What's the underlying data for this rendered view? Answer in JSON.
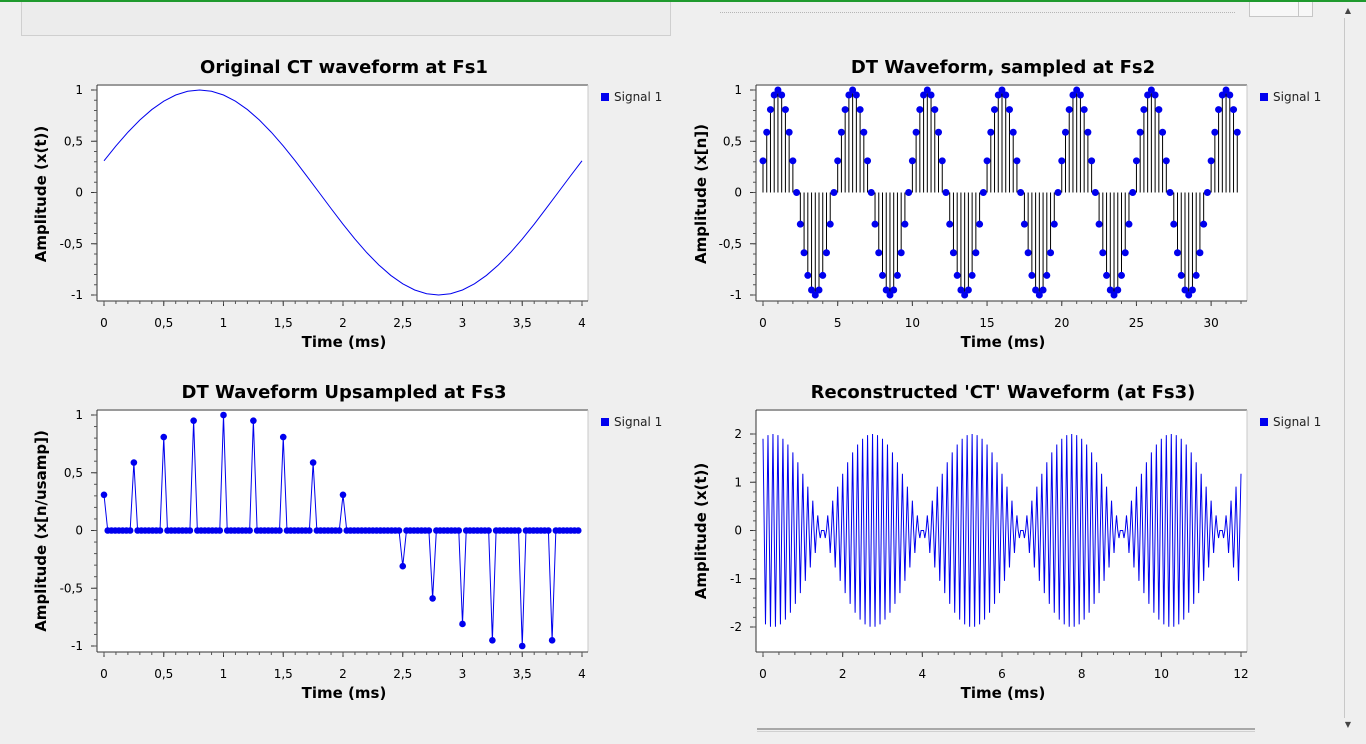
{
  "window": {
    "scroll_up_icon": "up-arrow-icon",
    "scroll_down_icon": "down-arrow-icon"
  },
  "colors": {
    "signal": "#0000ee",
    "accent_top": "#1f9a2e",
    "plot_background": "#ffffff",
    "page_background": "#efefef"
  },
  "chart_data": [
    {
      "type": "line",
      "title": "Original CT waveform at Fs1",
      "xlabel": "Time (ms)",
      "ylabel": "Amplitude (x(t))",
      "xlim": [
        0,
        4
      ],
      "ylim": [
        -1,
        1
      ],
      "x_ticks": [
        "0",
        "0,5",
        "1",
        "1,5",
        "2",
        "2,5",
        "3",
        "3,5",
        "4"
      ],
      "y_ticks": [
        "1",
        "0,5",
        "0",
        "-0,5",
        "-1"
      ],
      "legend_position": "top-right",
      "series": [
        {
          "name": "Signal 1",
          "x": [
            0,
            0.1,
            0.2,
            0.3,
            0.4,
            0.5,
            0.6,
            0.7,
            0.8,
            0.9,
            1.0,
            1.1,
            1.2,
            1.3,
            1.4,
            1.5,
            1.6,
            1.7,
            1.8,
            1.9,
            2.0,
            2.1,
            2.2,
            2.3,
            2.4,
            2.5,
            2.6,
            2.7,
            2.8,
            2.9,
            3.0,
            3.1,
            3.2,
            3.3,
            3.4,
            3.5,
            3.6,
            3.7,
            3.8,
            3.9,
            4.0
          ],
          "y": [
            0.309,
            0.454,
            0.588,
            0.707,
            0.809,
            0.891,
            0.951,
            0.988,
            1.0,
            0.988,
            0.951,
            0.891,
            0.809,
            0.707,
            0.588,
            0.454,
            0.309,
            0.156,
            0.0,
            -0.156,
            -0.309,
            -0.454,
            -0.588,
            -0.707,
            -0.809,
            -0.891,
            -0.951,
            -0.988,
            -1.0,
            -0.988,
            -0.951,
            -0.891,
            -0.809,
            -0.707,
            -0.588,
            -0.454,
            -0.309,
            -0.156,
            0.0,
            0.156,
            0.309
          ]
        }
      ]
    },
    {
      "type": "stem",
      "title": "DT Waveform, sampled at Fs2",
      "xlabel": "Time (ms)",
      "ylabel": "Amplitude (x[n])",
      "xlim": [
        0,
        32
      ],
      "ylim": [
        -1,
        1
      ],
      "x_ticks": [
        "0",
        "5",
        "10",
        "15",
        "20",
        "25",
        "30"
      ],
      "y_ticks": [
        "1",
        "0,5",
        "0",
        "-0,5",
        "-1"
      ],
      "legend_position": "top-right",
      "series": [
        {
          "name": "Signal 1",
          "period_samples": 20,
          "period_values": [
            0.309,
            0.588,
            0.809,
            0.951,
            1.0,
            0.951,
            0.809,
            0.588,
            0.309,
            0.0,
            -0.309,
            -0.588,
            -0.809,
            -0.951,
            -1.0,
            -0.951,
            -0.809,
            -0.588,
            -0.309,
            0.0
          ],
          "x_start": 0,
          "x_step": 0.25,
          "num_samples": 128
        }
      ]
    },
    {
      "type": "line",
      "title": "DT Waveform Upsampled at Fs3",
      "xlabel": "Time (ms)",
      "ylabel": "Amplitude (x[n/usamp])",
      "xlim": [
        0,
        4
      ],
      "ylim": [
        -1,
        1
      ],
      "x_ticks": [
        "0",
        "0,5",
        "1",
        "1,5",
        "2",
        "2,5",
        "3",
        "3,5",
        "4"
      ],
      "y_ticks": [
        "1",
        "0,5",
        "0",
        "-0,5",
        "-1"
      ],
      "legend_position": "top-right",
      "series": [
        {
          "name": "Signal 1",
          "markers": true,
          "upsample_factor": 8,
          "x_step": 0.03125,
          "samples": [
            0.309,
            0.588,
            0.809,
            0.951,
            1.0,
            0.951,
            0.809,
            0.588,
            0.309,
            0.0,
            -0.309,
            -0.588,
            -0.809,
            -0.951,
            -1.0,
            -0.951
          ]
        }
      ]
    },
    {
      "type": "line",
      "title": "Reconstructed 'CT' Waveform (at Fs3)",
      "xlabel": "Time (ms)",
      "ylabel": "Amplitude (x(t))",
      "xlim": [
        0,
        12
      ],
      "ylim": [
        -2.4,
        2.2
      ],
      "x_ticks": [
        "0",
        "2",
        "4",
        "6",
        "8",
        "10",
        "12"
      ],
      "y_ticks": [
        "2",
        "1",
        "0",
        "-1",
        "-2"
      ],
      "legend_position": "top-right",
      "series": [
        {
          "name": "Signal 1",
          "peak_amplitude": 2,
          "carrier_cycles_per_ms": 8,
          "envelope_period_ms": 2.5,
          "envelope_phase_ms": 0.25,
          "x_step": 0.03125
        }
      ]
    }
  ]
}
